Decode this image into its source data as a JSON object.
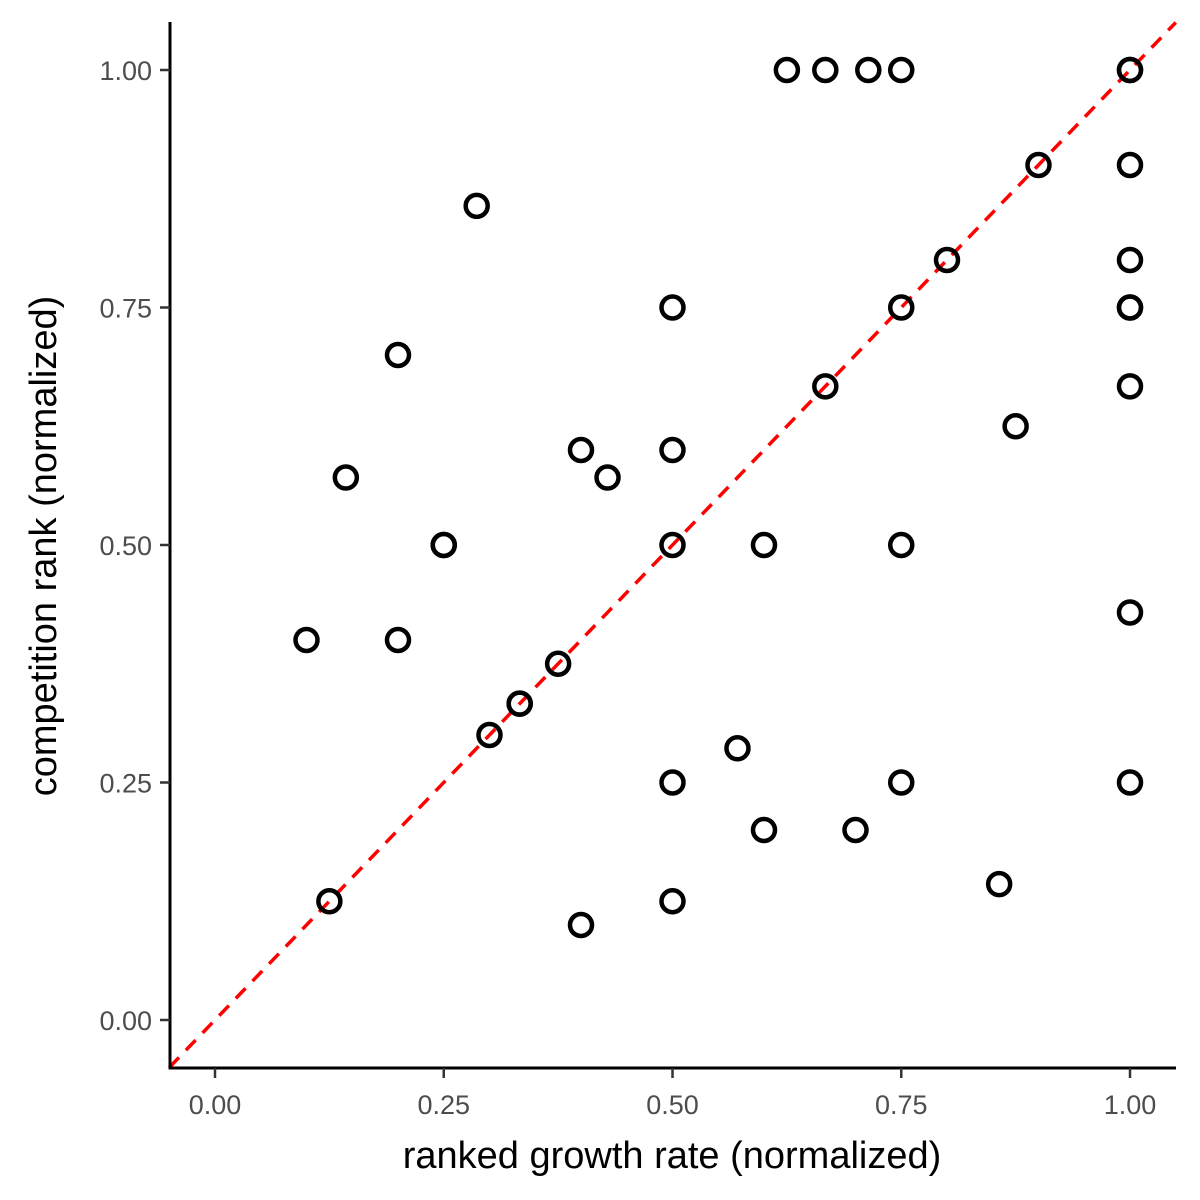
{
  "chart_data": {
    "type": "scatter",
    "title": "",
    "xlabel": "ranked growth rate (normalized)",
    "ylabel": "competition rank (normalized)",
    "xlim": [
      -0.05,
      1.05
    ],
    "ylim": [
      -0.05,
      1.05
    ],
    "x_ticks": [
      "0.00",
      "0.25",
      "0.50",
      "0.75",
      "1.00"
    ],
    "y_ticks": [
      "0.00",
      "0.25",
      "0.50",
      "0.75",
      "1.00"
    ],
    "grid": false,
    "legend": "none",
    "reference_line": {
      "type": "identity",
      "slope": 1,
      "intercept": 0,
      "style": "dashed",
      "color": "#ff0000"
    },
    "marker": {
      "shape": "open-circle",
      "color": "#000000"
    },
    "points": [
      {
        "x": 0.625,
        "y": 1.0
      },
      {
        "x": 0.667,
        "y": 1.0
      },
      {
        "x": 0.714,
        "y": 1.0
      },
      {
        "x": 0.75,
        "y": 1.0
      },
      {
        "x": 1.0,
        "y": 1.0
      },
      {
        "x": 1.0,
        "y": 1.0
      },
      {
        "x": 0.9,
        "y": 0.9
      },
      {
        "x": 1.0,
        "y": 0.9
      },
      {
        "x": 0.286,
        "y": 0.857
      },
      {
        "x": 0.8,
        "y": 0.8
      },
      {
        "x": 1.0,
        "y": 0.8
      },
      {
        "x": 0.5,
        "y": 0.75
      },
      {
        "x": 0.75,
        "y": 0.75
      },
      {
        "x": 1.0,
        "y": 0.75
      },
      {
        "x": 1.0,
        "y": 0.75
      },
      {
        "x": 0.2,
        "y": 0.7
      },
      {
        "x": 0.667,
        "y": 0.667
      },
      {
        "x": 1.0,
        "y": 0.667
      },
      {
        "x": 0.875,
        "y": 0.625
      },
      {
        "x": 0.4,
        "y": 0.6
      },
      {
        "x": 0.5,
        "y": 0.6
      },
      {
        "x": 0.143,
        "y": 0.571
      },
      {
        "x": 0.429,
        "y": 0.571
      },
      {
        "x": 0.25,
        "y": 0.5
      },
      {
        "x": 0.25,
        "y": 0.5
      },
      {
        "x": 0.5,
        "y": 0.5
      },
      {
        "x": 0.6,
        "y": 0.5
      },
      {
        "x": 0.75,
        "y": 0.5
      },
      {
        "x": 1.0,
        "y": 0.429
      },
      {
        "x": 0.1,
        "y": 0.4
      },
      {
        "x": 0.2,
        "y": 0.4
      },
      {
        "x": 0.375,
        "y": 0.375
      },
      {
        "x": 0.333,
        "y": 0.333
      },
      {
        "x": 0.333,
        "y": 0.333
      },
      {
        "x": 0.3,
        "y": 0.3
      },
      {
        "x": 0.571,
        "y": 0.286
      },
      {
        "x": 0.5,
        "y": 0.25
      },
      {
        "x": 0.75,
        "y": 0.25
      },
      {
        "x": 1.0,
        "y": 0.25
      },
      {
        "x": 0.6,
        "y": 0.2
      },
      {
        "x": 0.7,
        "y": 0.2
      },
      {
        "x": 0.857,
        "y": 0.143
      },
      {
        "x": 0.125,
        "y": 0.125
      },
      {
        "x": 0.5,
        "y": 0.125
      },
      {
        "x": 0.4,
        "y": 0.1
      }
    ]
  }
}
